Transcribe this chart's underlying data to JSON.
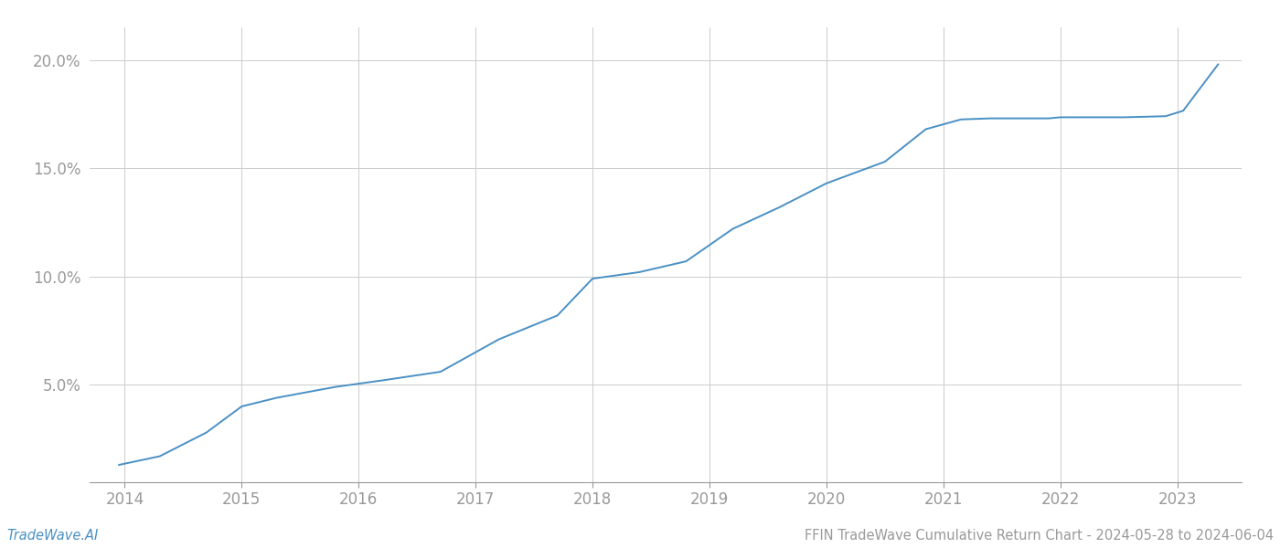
{
  "x_years": [
    2013.95,
    2014.3,
    2014.7,
    2015.0,
    2015.3,
    2015.8,
    2016.2,
    2016.7,
    2017.2,
    2017.7,
    2018.0,
    2018.4,
    2018.8,
    2019.2,
    2019.6,
    2020.0,
    2020.5,
    2020.85,
    2021.15,
    2021.4,
    2021.9,
    2022.0,
    2022.4,
    2022.55,
    2022.9,
    2023.05,
    2023.35
  ],
  "y_values": [
    1.3,
    1.7,
    2.8,
    4.0,
    4.4,
    4.9,
    5.2,
    5.6,
    7.1,
    8.2,
    9.9,
    10.2,
    10.7,
    12.2,
    13.2,
    14.3,
    15.3,
    16.8,
    17.25,
    17.3,
    17.3,
    17.35,
    17.35,
    17.35,
    17.4,
    17.65,
    19.8
  ],
  "line_color": "#4a90c4",
  "line_width": 1.4,
  "footer_left": "TradeWave.AI",
  "footer_right": "FFIN TradeWave Cumulative Return Chart - 2024-05-28 to 2024-06-04",
  "x_ticks": [
    2014,
    2015,
    2016,
    2017,
    2018,
    2019,
    2020,
    2021,
    2022,
    2023
  ],
  "y_ticks": [
    5.0,
    10.0,
    15.0,
    20.0
  ],
  "y_labels": [
    "5.0%",
    "10.0%",
    "15.0%",
    "20.0%"
  ],
  "xlim": [
    2013.7,
    2023.55
  ],
  "ylim": [
    0.5,
    21.5
  ],
  "bg_color": "#ffffff",
  "grid_color": "#cccccc",
  "tick_color": "#999999",
  "footer_left_color": "#4a90c4",
  "footer_right_color": "#999999"
}
